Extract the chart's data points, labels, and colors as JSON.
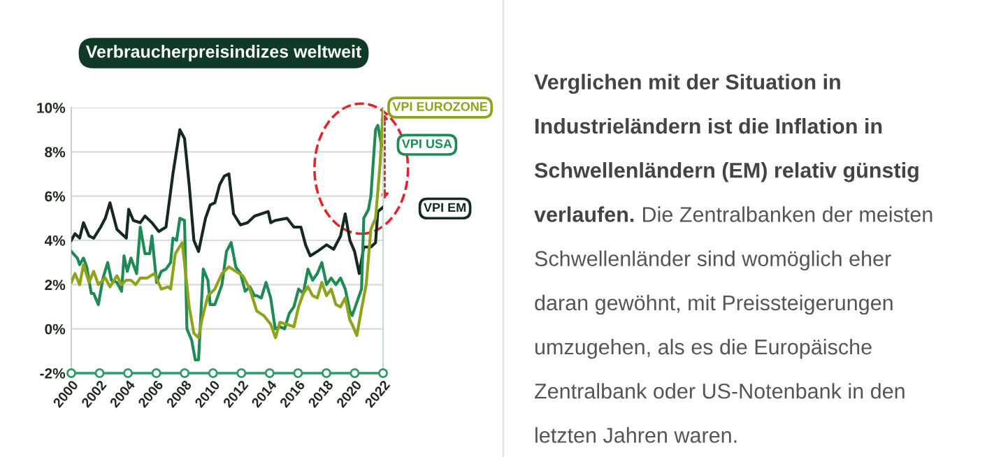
{
  "chart_data": {
    "type": "line",
    "title": "Verbraucherpreisindizes weltweit",
    "series": [
      {
        "name": "VPI EUROZONE",
        "color": "#8fa31a",
        "x": [
          2000,
          2000.26,
          2000.59,
          2000.86,
          2001.25,
          2001.58,
          2001.91,
          2002.4,
          2002.73,
          2003.22,
          2003.55,
          2003.88,
          2004.21,
          2004.54,
          2004.87,
          2005.36,
          2005.86,
          2006.35,
          2006.84,
          2007.01,
          2007.34,
          2007.83,
          2008.32,
          2008.65,
          2008.98,
          2009.21,
          2009.64,
          2010.13,
          2010.63,
          2011.12,
          2011.61,
          2012.11,
          2012.6,
          2013.09,
          2013.59,
          2014.08,
          2014.41,
          2014.72,
          2015.22,
          2015.71,
          2016.04,
          2016.37,
          2016.7,
          2017.03,
          2017.36,
          2017.68,
          2018.01,
          2018.34,
          2018.67,
          2019.0,
          2019.33,
          2019.66,
          2019.82,
          2020.15,
          2020.48,
          2020.81,
          2021.14,
          2021.47,
          2021.8,
          2022.0
        ],
        "values": [
          2.1,
          2.5,
          2.0,
          2.9,
          2.1,
          2.6,
          2.0,
          2.3,
          1.9,
          2.4,
          2.0,
          2.2,
          2.2,
          2.0,
          2.3,
          2.3,
          2.5,
          1.8,
          1.9,
          1.8,
          3.4,
          3.9,
          1.0,
          -0.2,
          -0.4,
          0.4,
          1.5,
          1.8,
          2.5,
          2.8,
          2.6,
          2.4,
          1.8,
          0.8,
          0.6,
          0.2,
          -0.4,
          0.3,
          0.2,
          0.1,
          1.0,
          1.6,
          1.9,
          1.5,
          1.4,
          2.1,
          1.5,
          1.8,
          1.1,
          1.0,
          1.4,
          0.4,
          0.2,
          -0.3,
          0.9,
          2.0,
          4.5,
          5.0,
          7.5,
          10.0
        ]
      },
      {
        "name": "VPI USA",
        "color": "#1e8a55",
        "x": [
          2000,
          2000.43,
          2000.59,
          2000.86,
          2001.09,
          2001.41,
          2001.58,
          2001.91,
          2002.24,
          2002.57,
          2002.83,
          2003.22,
          2003.55,
          2003.72,
          2003.95,
          2004.21,
          2004.61,
          2004.87,
          2005.2,
          2005.53,
          2005.69,
          2006.02,
          2006.35,
          2006.68,
          2007.01,
          2007.17,
          2007.43,
          2007.66,
          2007.99,
          2008.16,
          2008.49,
          2008.75,
          2008.98,
          2009.31,
          2009.64,
          2009.8,
          2010.13,
          2010.63,
          2010.95,
          2011.28,
          2011.61,
          2011.94,
          2012.27,
          2012.6,
          2012.93,
          2013.08,
          2013.41,
          2013.74,
          2014.07,
          2014.39,
          2014.72,
          2015.05,
          2015.38,
          2015.71,
          2016.04,
          2016.37,
          2016.7,
          2017.03,
          2017.36,
          2017.68,
          2018.01,
          2018.34,
          2018.67,
          2019.0,
          2019.33,
          2019.66,
          2019.82,
          2020.15,
          2020.48,
          2020.64,
          2020.97,
          2021.14,
          2021.47,
          2021.63,
          2021.89,
          2022.0
        ],
        "values": [
          3.5,
          3.2,
          2.9,
          3.2,
          2.8,
          1.6,
          1.6,
          1.1,
          2.3,
          3.0,
          2.2,
          2.1,
          1.7,
          3.3,
          2.6,
          3.2,
          2.5,
          4.6,
          3.4,
          3.4,
          4.2,
          2.1,
          2.6,
          2.7,
          3.0,
          4.1,
          4.0,
          5.0,
          4.9,
          0.0,
          -0.5,
          -1.4,
          -1.4,
          2.7,
          2.2,
          1.1,
          1.1,
          2.0,
          3.5,
          3.9,
          2.8,
          2.5,
          1.7,
          1.9,
          1.5,
          1.5,
          1.4,
          2.1,
          1.4,
          0.0,
          0.1,
          0.0,
          0.7,
          1.0,
          1.8,
          1.6,
          2.7,
          2.2,
          2.5,
          3.0,
          2.0,
          2.3,
          2.0,
          2.3,
          1.8,
          0.8,
          0.6,
          1.2,
          1.8,
          5.0,
          5.4,
          6.0,
          9.0,
          9.2,
          8.3,
          8.3
        ]
      },
      {
        "name": "VPI EM",
        "color": "#142a1c",
        "x": [
          2000,
          2000.26,
          2000.59,
          2000.86,
          2001.25,
          2001.58,
          2002.07,
          2002.4,
          2002.73,
          2003.22,
          2003.55,
          2003.88,
          2004.05,
          2004.38,
          2004.87,
          2005.2,
          2005.69,
          2006.18,
          2006.68,
          2007.17,
          2007.66,
          2007.99,
          2008.32,
          2008.65,
          2008.98,
          2009.47,
          2009.8,
          2010.13,
          2010.46,
          2010.79,
          2011.12,
          2011.45,
          2011.94,
          2012.43,
          2012.93,
          2013.41,
          2013.9,
          2014.07,
          2014.39,
          2015.22,
          2015.71,
          2016.2,
          2016.53,
          2016.86,
          2017.36,
          2018.01,
          2018.51,
          2019.0,
          2019.33,
          2019.66,
          2019.99,
          2020.32,
          2020.64,
          2021.14,
          2021.47,
          2021.63,
          2022.0
        ],
        "values": [
          4.0,
          4.3,
          4.1,
          4.8,
          4.2,
          4.1,
          4.6,
          5.0,
          5.7,
          4.5,
          4.3,
          4.1,
          5.4,
          4.9,
          4.8,
          5.1,
          4.8,
          4.4,
          4.6,
          7.0,
          9.0,
          8.6,
          6.5,
          4.0,
          3.5,
          5.0,
          5.6,
          5.7,
          6.5,
          6.9,
          7.0,
          5.2,
          4.7,
          4.8,
          5.1,
          5.2,
          5.3,
          4.8,
          4.9,
          5.0,
          4.6,
          4.6,
          3.8,
          3.3,
          3.5,
          3.8,
          3.6,
          4.2,
          5.2,
          4.0,
          3.5,
          2.5,
          3.7,
          3.7,
          3.9,
          5.3,
          5.5
        ]
      }
    ],
    "xlim": [
      2000,
      2022
    ],
    "xticks": [
      2000,
      2002,
      2004,
      2006,
      2008,
      2010,
      2012,
      2014,
      2016,
      2018,
      2020,
      2022
    ],
    "ylim": [
      -2,
      10
    ],
    "yticks": [
      {
        "value": -2,
        "label": "-2%"
      },
      {
        "value": 0,
        "label": "0%"
      },
      {
        "value": 2,
        "label": "2%"
      },
      {
        "value": 4,
        "label": "4%"
      },
      {
        "value": 6,
        "label": "6%"
      },
      {
        "value": 8,
        "label": "8%"
      },
      {
        "value": 10,
        "label": "10%"
      }
    ],
    "grid": "y",
    "legend": false,
    "line_style": "solid",
    "annotations": [
      "Verglichen mit der Situation in\nIndustrieländern ist die Inflation in\nSchwellenländern (EM) relativ günstig\nverlaufen.",
      " Die Zentralbanken der meisten\nSchwellenländer sind womöglich eher\ndaran gewöhnt, mit Preissteigerungen\numzugehen, als es die Europäische\nZentralbank oder US-Notenbank in den\nletzten Jahren waren."
    ]
  }
}
